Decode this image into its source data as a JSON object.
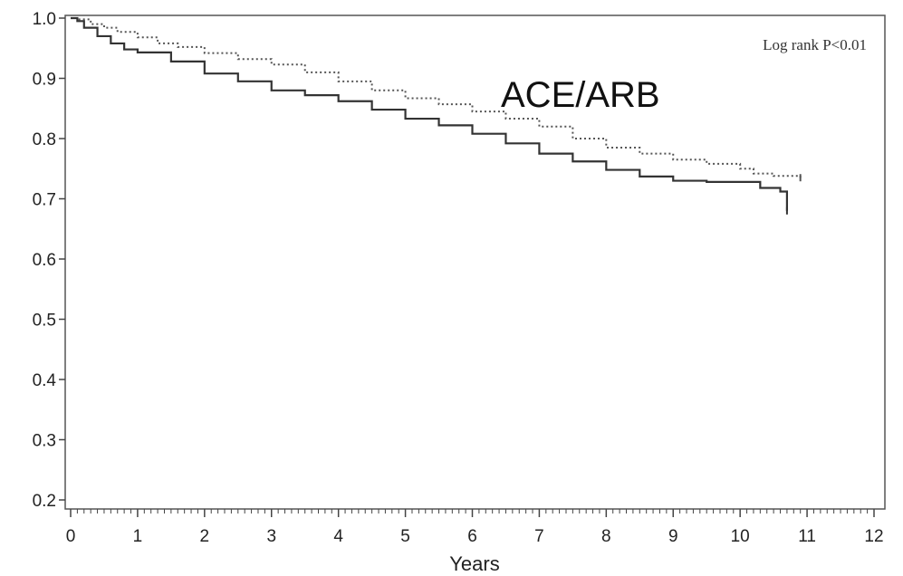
{
  "chart_data": {
    "type": "line",
    "title": "",
    "xlabel": "Years",
    "ylabel": "",
    "xlim": [
      0,
      12
    ],
    "ylim": [
      0.2,
      1.0
    ],
    "grid": false,
    "legend": "none",
    "x_ticks": [
      0,
      1,
      2,
      3,
      4,
      5,
      6,
      7,
      8,
      9,
      10,
      11,
      12
    ],
    "y_ticks": [
      "0.2",
      "0.3",
      "0.4",
      "0.5",
      "0.6",
      "0.7",
      "0.8",
      "0.9",
      "1.0"
    ],
    "annotations": [
      {
        "id": "logrank",
        "text": "Log rank P<0.01"
      },
      {
        "id": "series-label",
        "text": "ACE/ARB"
      }
    ],
    "series": [
      {
        "name": "ACE/ARB",
        "style": "dotted",
        "color": "#555555",
        "x": [
          0,
          0.1,
          0.3,
          0.5,
          0.7,
          1.0,
          1.3,
          1.6,
          2.0,
          2.5,
          3.0,
          3.5,
          4.0,
          4.5,
          5.0,
          5.5,
          6.0,
          6.5,
          7.0,
          7.5,
          8.0,
          8.5,
          9.0,
          9.5,
          10.0,
          10.2,
          10.5,
          10.9
        ],
        "y": [
          1.0,
          0.998,
          0.99,
          0.984,
          0.977,
          0.968,
          0.958,
          0.952,
          0.942,
          0.932,
          0.923,
          0.91,
          0.895,
          0.88,
          0.867,
          0.857,
          0.845,
          0.833,
          0.82,
          0.8,
          0.785,
          0.775,
          0.765,
          0.758,
          0.75,
          0.742,
          0.738,
          0.735
        ]
      },
      {
        "name": "",
        "style": "solid",
        "color": "#333333",
        "x": [
          0,
          0.1,
          0.2,
          0.4,
          0.6,
          0.8,
          1.0,
          1.5,
          2.0,
          2.5,
          3.0,
          3.5,
          4.0,
          4.5,
          5.0,
          5.5,
          6.0,
          6.5,
          7.0,
          7.5,
          8.0,
          8.5,
          9.0,
          9.5,
          10.0,
          10.3,
          10.6,
          10.7,
          10.7
        ],
        "y": [
          1.0,
          0.995,
          0.984,
          0.97,
          0.958,
          0.948,
          0.943,
          0.928,
          0.908,
          0.895,
          0.88,
          0.872,
          0.862,
          0.848,
          0.833,
          0.822,
          0.808,
          0.792,
          0.775,
          0.762,
          0.748,
          0.737,
          0.73,
          0.728,
          0.728,
          0.718,
          0.712,
          0.69,
          0.68
        ]
      }
    ]
  }
}
